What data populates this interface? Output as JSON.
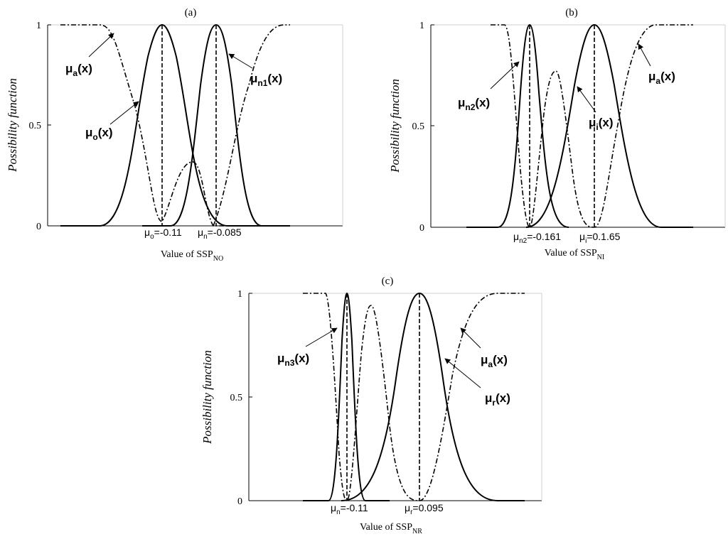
{
  "chart_data": [
    {
      "type": "line",
      "title": "(a)",
      "ylabel": "Possibility function",
      "xlabel": {
        "main": "Value of SSP",
        "sub": "NO"
      },
      "ylim": [
        0,
        1
      ],
      "yticks": [
        "0",
        "0.5",
        "1"
      ],
      "series": [
        {
          "label": "μo(x)",
          "style": "solid",
          "peak_x": -0.11,
          "values": [
            [
              -0.16,
              0
            ],
            [
              -0.13,
              0.5
            ],
            [
              -0.11,
              1
            ],
            [
              -0.09,
              0.5
            ],
            [
              -0.06,
              0
            ]
          ]
        },
        {
          "label": "μn1(x)",
          "style": "solid",
          "peak_x": -0.085,
          "values": [
            [
              -0.11,
              0
            ],
            [
              -0.097,
              0.5
            ],
            [
              -0.085,
              1
            ],
            [
              -0.073,
              0.5
            ],
            [
              -0.06,
              0
            ]
          ]
        },
        {
          "label": "μa(x)",
          "style": "dashdot",
          "values": [
            [
              -0.16,
              1
            ],
            [
              -0.12,
              0.6
            ],
            [
              -0.1,
              0.1
            ],
            [
              -0.092,
              0.32
            ],
            [
              -0.085,
              0
            ],
            [
              -0.06,
              0
            ]
          ]
        }
      ],
      "means": [
        {
          "sym": "μ",
          "sub": "o",
          "value": "=-0.11"
        },
        {
          "sym": "μ",
          "sub": "n",
          "value": "=-0.085"
        }
      ],
      "annotations": [
        {
          "sym": "μ",
          "sub": "a",
          "suffix": "(x)"
        },
        {
          "sym": "μ",
          "sub": "o",
          "suffix": "(x)"
        },
        {
          "sym": "μ",
          "sub": "n1",
          "suffix": "(x)"
        }
      ]
    },
    {
      "type": "line",
      "title": "(b)",
      "ylabel": "Possibility function",
      "xlabel": {
        "main": "Value of SSP",
        "sub": "NI"
      },
      "ylim": [
        0,
        1
      ],
      "yticks": [
        "0",
        "0.5",
        "1"
      ],
      "series": [
        {
          "label": "μn2(x)",
          "style": "solid",
          "peak_x": -0.161
        },
        {
          "label": "μi(x)",
          "style": "solid",
          "peak_x": 0.165
        },
        {
          "label": "μa(x)",
          "style": "dashdot"
        }
      ],
      "means": [
        {
          "sym": "μ",
          "sub": "n2",
          "value": "=-0.161"
        },
        {
          "sym": "μ",
          "sub": "i",
          "value": "=0.1.65"
        }
      ],
      "annotations": [
        {
          "sym": "μ",
          "sub": "n2",
          "suffix": "(x)"
        },
        {
          "sym": "μ",
          "sub": "i",
          "suffix": "(x)"
        },
        {
          "sym": "μ",
          "sub": "a",
          "suffix": "(x)"
        }
      ]
    },
    {
      "type": "line",
      "title": "(c)",
      "ylabel": "Possibility function",
      "xlabel": {
        "main": "Value of SSP",
        "sub": "NR"
      },
      "ylim": [
        0,
        1
      ],
      "yticks": [
        "0",
        "0.5",
        "1"
      ],
      "series": [
        {
          "label": "μn3(x)",
          "style": "solid",
          "peak_x": -0.11
        },
        {
          "label": "μr(x)",
          "style": "solid",
          "peak_x": 0.095
        },
        {
          "label": "μa(x)",
          "style": "dashdot"
        }
      ],
      "means": [
        {
          "sym": "μ",
          "sub": "n",
          "value": "=-0.11"
        },
        {
          "sym": "μ",
          "sub": "r",
          "value": "=0.095"
        }
      ],
      "annotations": [
        {
          "sym": "μ",
          "sub": "n3",
          "suffix": "(x)"
        },
        {
          "sym": "μ",
          "sub": "a",
          "suffix": "(x)"
        },
        {
          "sym": "μ",
          "sub": "r",
          "suffix": "(x)"
        }
      ]
    }
  ]
}
